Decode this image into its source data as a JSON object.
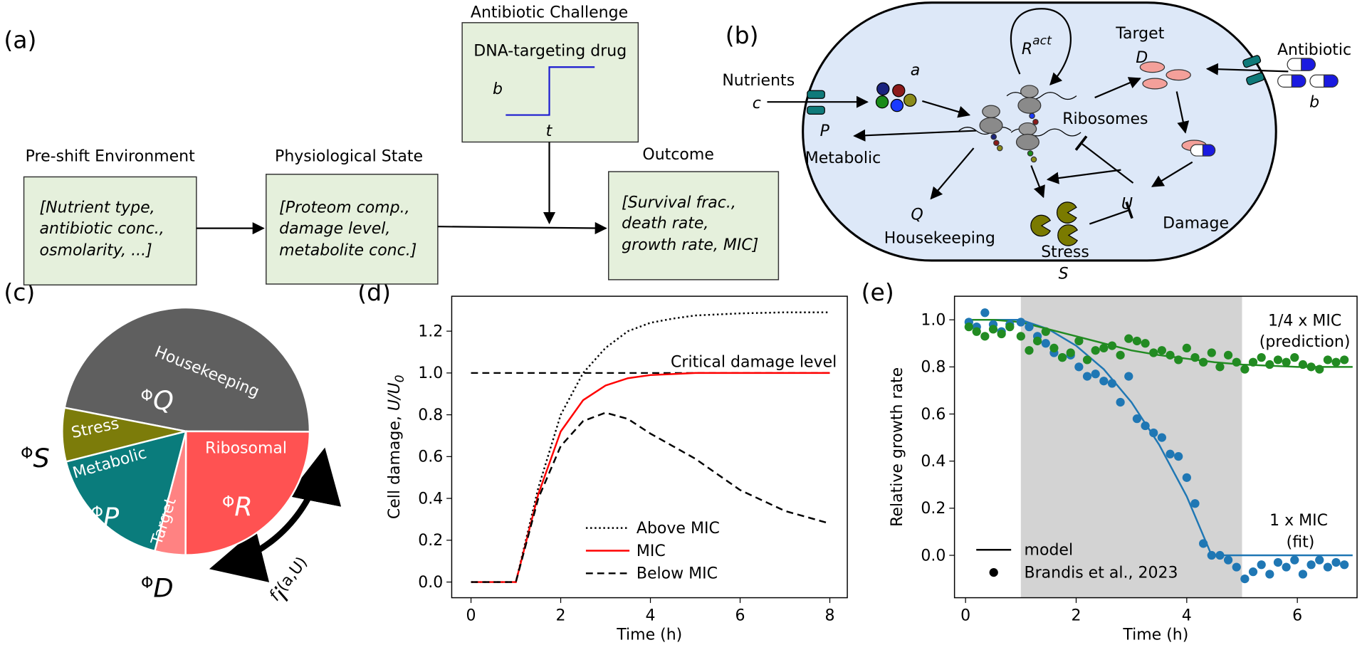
{
  "panel_labels": [
    "(a)",
    "(b)",
    "(c)",
    "(d)",
    "(e)"
  ],
  "workflow": {
    "stages": [
      {
        "title": "Pre-shift Environment",
        "lines": [
          "[Nutrient type,",
          "antibiotic conc.,",
          "osmolarity, ...]"
        ]
      },
      {
        "title": "Physiological State",
        "lines": [
          "[Proteom comp.,",
          "damage level,",
          "metabolite conc.]"
        ]
      },
      {
        "title": "Outcome",
        "lines": [
          "[Survival frac.,",
          "death rate,",
          "growth rate, MIC]"
        ]
      }
    ],
    "challenge": {
      "title": "Antibiotic Challenge",
      "box_title": "DNA-targeting drug",
      "y_symbol": "b",
      "x_symbol": "t"
    }
  },
  "cell_diagram": {
    "nutrients": "Nutrients",
    "nutrient_symbol": "c",
    "metabolic_symbol": "P",
    "metabolic": "Metabolic",
    "amino_acid_symbol": "a",
    "active_ribosome_symbol": "R",
    "active_ribosome_superscript": "act",
    "ribosomes": "Ribosomes",
    "target": "Target",
    "target_symbol": "D",
    "antibiotic": "Antibiotic",
    "antibiotic_symbol": "b",
    "housekeeping_symbol": "Q",
    "housekeeping": "Housekeeping",
    "stress": "Stress",
    "stress_symbol": "S",
    "damage_symbol": "U",
    "damage": "Damage"
  },
  "chart_data": [
    {
      "type": "pie",
      "categories": [
        "Housekeeping",
        "Ribosomal",
        "Target",
        "Metabolic",
        "Stress"
      ],
      "values": [
        47,
        25,
        4,
        17,
        7
      ],
      "colors": [
        "#5f5f5f",
        "#ff5252",
        "#ff8282",
        "#0a7c7c",
        "#7c7c0a"
      ],
      "symbols": [
        {
          "base": "Φ",
          "sub": "Q"
        },
        {
          "base": "Φ",
          "sub": "R"
        },
        {
          "base": "Φ",
          "sub": "D"
        },
        {
          "base": "Φ",
          "sub": "P"
        },
        {
          "base": "Φ",
          "sub": "S"
        }
      ],
      "arrow_label": {
        "base": "f",
        "sub": "i",
        "args": "(a,U)"
      }
    },
    {
      "type": "line",
      "xlabel": "Time (h)",
      "ylabel": {
        "text": "Cell damage, ",
        "symbol": "U/U",
        "sub": "0"
      },
      "x": [
        0,
        1,
        1.5,
        2,
        2.5,
        3,
        3.5,
        4,
        4.5,
        5,
        6,
        7,
        8
      ],
      "xlim": [
        -0.43,
        8.39
      ],
      "xticks": [
        0,
        2,
        4,
        6,
        8
      ],
      "ylim": [
        -0.075,
        1.367
      ],
      "yticks": [
        {
          "value": 0,
          "label": "0.0"
        },
        0.2,
        0.4,
        0.6,
        0.8,
        {
          "value": 1,
          "label": "1.0"
        },
        1.2
      ],
      "series": [
        {
          "name": "Above MIC",
          "color": "#000000",
          "style": "dotted",
          "values": [
            0,
            0,
            0.45,
            0.8,
            1.0,
            1.12,
            1.2,
            1.24,
            1.26,
            1.275,
            1.285,
            1.29,
            1.29
          ]
        },
        {
          "name": "MIC",
          "color": "#ff0000",
          "style": "solid",
          "values": [
            0,
            0,
            0.42,
            0.72,
            0.87,
            0.94,
            0.975,
            0.99,
            0.995,
            1.0,
            1.0,
            1.0,
            1.0
          ]
        },
        {
          "name": "Below MIC",
          "color": "#000000",
          "style": "dashed",
          "values": [
            0,
            0,
            0.4,
            0.65,
            0.77,
            0.81,
            0.78,
            0.71,
            0.65,
            0.59,
            0.44,
            0.34,
            0.28
          ]
        }
      ],
      "reference_lines": [
        {
          "y": 1,
          "label": "Critical damage level",
          "color": "#000000",
          "style": "dashed"
        }
      ],
      "legend": "lower right"
    },
    {
      "type": "scatter",
      "xlabel": "Time (h)",
      "ylabel": {
        "text": "Relative growth rate"
      },
      "xlim": [
        -0.2,
        7.08
      ],
      "xticks": [
        0,
        2,
        4,
        6
      ],
      "ylim": [
        -0.18,
        1.1
      ],
      "yticks": [
        {
          "value": 0,
          "label": "0.0"
        },
        0.2,
        0.4,
        0.6,
        0.8,
        {
          "value": 1,
          "label": "1.0"
        }
      ],
      "shaded_span": [
        1,
        5
      ],
      "shade_color": "#d3d3d3",
      "series": [
        {
          "style": "solid",
          "color": "#1f77b4",
          "x": [
            0,
            0.5,
            1,
            1.5,
            2,
            2.5,
            3,
            3.5,
            4,
            4.45,
            5,
            5.5,
            6,
            6.5,
            7
          ],
          "values": [
            1,
            1,
            1,
            0.96,
            0.89,
            0.79,
            0.65,
            0.47,
            0.25,
            0,
            0,
            0,
            0,
            0,
            0
          ]
        },
        {
          "style": "solid",
          "color": "#228b22",
          "x": [
            0,
            0.5,
            1,
            1.5,
            2,
            2.5,
            3,
            3.5,
            4,
            4.5,
            5,
            5.5,
            6,
            6.5,
            7
          ],
          "values": [
            1,
            1,
            0.99,
            0.96,
            0.93,
            0.9,
            0.87,
            0.85,
            0.835,
            0.82,
            0.81,
            0.805,
            0.8,
            0.8,
            0.8
          ]
        },
        {
          "style": "scatter",
          "color": "#1f77b4",
          "x": [
            0.06,
            0.2,
            0.35,
            0.5,
            0.65,
            0.8,
            1.0,
            1.15,
            1.3,
            1.45,
            1.6,
            1.75,
            1.9,
            2.05,
            2.2,
            2.35,
            2.5,
            2.65,
            2.8,
            2.95,
            3.1,
            3.25,
            3.4,
            3.55,
            3.7,
            3.85,
            4.0,
            4.15,
            4.3,
            4.45,
            4.6,
            4.75,
            4.9,
            5.05,
            5.2,
            5.35,
            5.5,
            5.65,
            5.8,
            5.95,
            6.1,
            6.25,
            6.4,
            6.55,
            6.7,
            6.85
          ],
          "values": [
            0.99,
            0.97,
            1.03,
            0.98,
            0.95,
            0.98,
            0.99,
            0.97,
            0.93,
            0.9,
            0.86,
            0.84,
            0.85,
            0.8,
            0.76,
            0.77,
            0.74,
            0.73,
            0.65,
            0.76,
            0.58,
            0.55,
            0.52,
            0.5,
            0.43,
            0.42,
            0.33,
            0.22,
            0.05,
            0.0,
            0.0,
            -0.02,
            -0.05,
            -0.1,
            -0.07,
            -0.04,
            -0.08,
            -0.03,
            -0.05,
            -0.02,
            -0.08,
            -0.04,
            -0.02,
            -0.05,
            -0.03,
            -0.04
          ]
        },
        {
          "style": "scatter",
          "color": "#228b22",
          "x": [
            0.06,
            0.2,
            0.35,
            0.5,
            0.65,
            0.8,
            1.0,
            1.15,
            1.3,
            1.45,
            1.6,
            1.75,
            1.9,
            2.05,
            2.2,
            2.35,
            2.5,
            2.65,
            2.8,
            2.95,
            3.1,
            3.25,
            3.4,
            3.55,
            3.7,
            3.85,
            4.0,
            4.15,
            4.3,
            4.45,
            4.6,
            4.75,
            4.9,
            5.05,
            5.2,
            5.35,
            5.5,
            5.65,
            5.8,
            5.95,
            6.1,
            6.25,
            6.4,
            6.55,
            6.7,
            6.85
          ],
          "values": [
            0.97,
            0.95,
            0.93,
            0.96,
            0.94,
            0.97,
            0.93,
            0.87,
            0.91,
            0.95,
            0.88,
            0.84,
            0.86,
            0.91,
            0.83,
            0.87,
            0.88,
            0.89,
            0.85,
            0.92,
            0.91,
            0.9,
            0.86,
            0.87,
            0.85,
            0.83,
            0.88,
            0.84,
            0.82,
            0.86,
            0.8,
            0.85,
            0.82,
            0.79,
            0.82,
            0.84,
            0.81,
            0.83,
            0.82,
            0.84,
            0.81,
            0.8,
            0.79,
            0.83,
            0.82,
            0.83
          ]
        }
      ],
      "legend": "lower left",
      "legend_entries": [
        {
          "label": "model",
          "marker": "line"
        },
        {
          "label": "Brandis et al., 2023",
          "marker": "dot"
        }
      ],
      "annotations": [
        "1/4 x MIC",
        "(prediction)",
        "1 x MIC",
        "(fit)"
      ]
    }
  ]
}
